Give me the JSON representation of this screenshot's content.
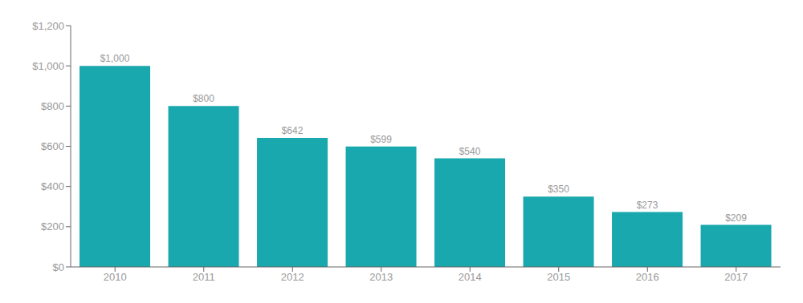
{
  "chart_data": {
    "type": "bar",
    "categories": [
      "2010",
      "2011",
      "2012",
      "2013",
      "2014",
      "2015",
      "2016",
      "2017"
    ],
    "values": [
      1000,
      800,
      642,
      599,
      540,
      350,
      273,
      209
    ],
    "value_labels": [
      "$1,000",
      "$800",
      "$642",
      "$599",
      "$540",
      "$350",
      "$273",
      "$209"
    ],
    "data_labels": true,
    "color": "#19a8ad",
    "ylim": [
      0,
      1200
    ],
    "yticks": [
      {
        "value": 0,
        "label": "$0"
      },
      {
        "value": 200,
        "label": "$200"
      },
      {
        "value": 400,
        "label": "$400"
      },
      {
        "value": 600,
        "label": "$600"
      },
      {
        "value": 800,
        "label": "$800"
      },
      {
        "value": 1000,
        "label": "$1,000"
      },
      {
        "value": 1200,
        "label": "$1,200"
      }
    ],
    "grid": false
  }
}
